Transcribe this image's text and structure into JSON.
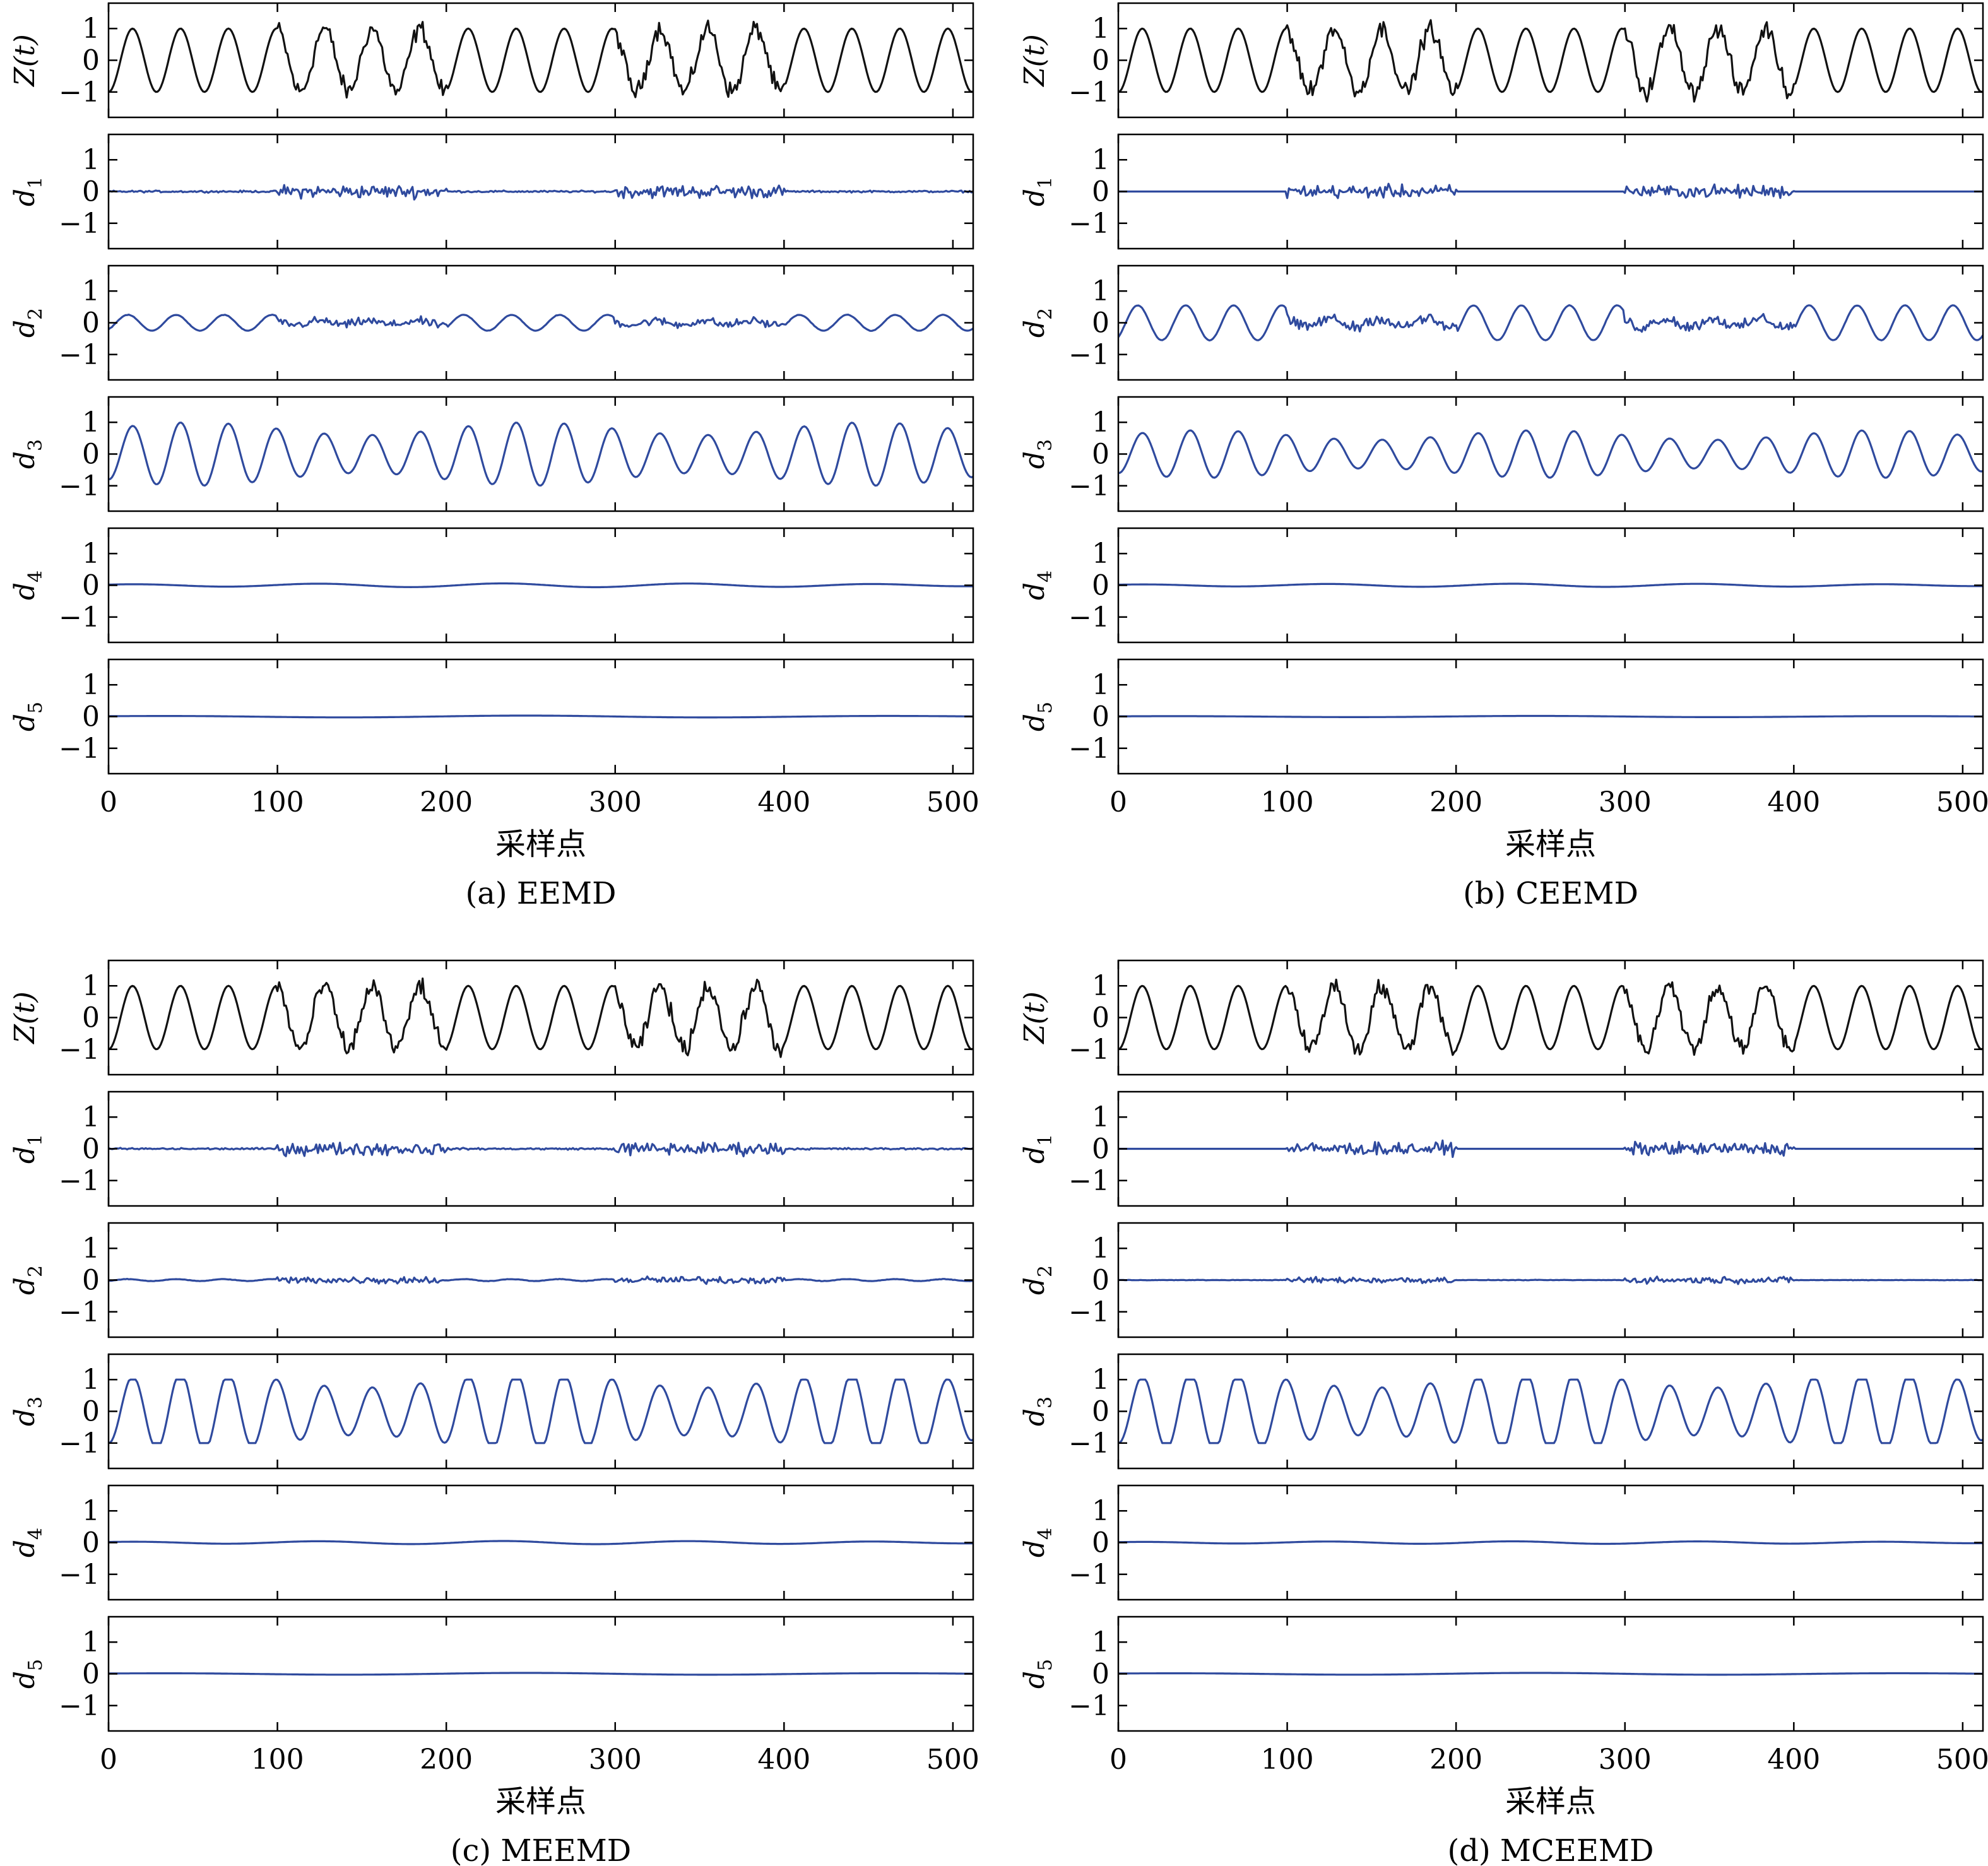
{
  "chart_data": [
    {
      "type": "line",
      "caption": "(a) EEMD",
      "xlabel": "采样点",
      "xlim": [
        0,
        512
      ],
      "xticks": [
        0,
        100,
        200,
        300,
        400,
        500
      ],
      "ylim": [
        -1.8,
        1.8
      ],
      "yticks": [
        -1,
        0,
        1
      ],
      "panels": [
        {
          "ylabel": "Z(t)",
          "color": "#111111",
          "component": "signal",
          "amp": 1.0,
          "noise": 0.2
        },
        {
          "ylabel": "d1",
          "color": "#2f4a9e",
          "component": "noise",
          "amp": 0.14,
          "base": 0.02
        },
        {
          "ylabel": "d2",
          "color": "#2f4a9e",
          "component": "mixed",
          "amp": 0.25,
          "noise": 0.09
        },
        {
          "ylabel": "d3",
          "color": "#2f4a9e",
          "component": "sine",
          "amp": 0.8
        },
        {
          "ylabel": "d4",
          "color": "#2f4a9e",
          "component": "slow",
          "amp": 0.06,
          "period": 110
        },
        {
          "ylabel": "d5",
          "color": "#2f4a9e",
          "component": "slow",
          "amp": 0.03,
          "period": 220
        }
      ]
    },
    {
      "type": "line",
      "caption": "(b) CEEMD",
      "xlabel": "采样点",
      "xlim": [
        0,
        512
      ],
      "xticks": [
        0,
        100,
        200,
        300,
        400,
        500
      ],
      "ylim": [
        -1.8,
        1.8
      ],
      "yticks": [
        -1,
        0,
        1
      ],
      "panels": [
        {
          "ylabel": "Z(t)",
          "color": "#111111",
          "component": "signal",
          "amp": 1.0,
          "noise": 0.2
        },
        {
          "ylabel": "d1",
          "color": "#2f4a9e",
          "component": "noise",
          "amp": 0.14,
          "base": 0.0
        },
        {
          "ylabel": "d2",
          "color": "#2f4a9e",
          "component": "mixed",
          "amp": 0.55,
          "noise": 0.12
        },
        {
          "ylabel": "d3",
          "color": "#2f4a9e",
          "component": "sine",
          "amp": 0.6
        },
        {
          "ylabel": "d4",
          "color": "#2f4a9e",
          "component": "slow",
          "amp": 0.05,
          "period": 110
        },
        {
          "ylabel": "d5",
          "color": "#2f4a9e",
          "component": "slow",
          "amp": 0.02,
          "period": 220
        }
      ]
    },
    {
      "type": "line",
      "caption": "(c) MEEMD",
      "xlabel": "采样点",
      "xlim": [
        0,
        512
      ],
      "xticks": [
        0,
        100,
        200,
        300,
        400,
        500
      ],
      "ylim": [
        -1.8,
        1.8
      ],
      "yticks": [
        -1,
        0,
        1
      ],
      "panels": [
        {
          "ylabel": "Z(t)",
          "color": "#111111",
          "component": "signal",
          "amp": 1.0,
          "noise": 0.2
        },
        {
          "ylabel": "d1",
          "color": "#2f4a9e",
          "component": "noise",
          "amp": 0.14,
          "base": 0.02
        },
        {
          "ylabel": "d2",
          "color": "#2f4a9e",
          "component": "mixed",
          "amp": 0.03,
          "noise": 0.08
        },
        {
          "ylabel": "d3",
          "color": "#2f4a9e",
          "component": "sine",
          "amp": 1.0
        },
        {
          "ylabel": "d4",
          "color": "#2f4a9e",
          "component": "slow",
          "amp": 0.05,
          "period": 110
        },
        {
          "ylabel": "d5",
          "color": "#2f4a9e",
          "component": "slow",
          "amp": 0.03,
          "period": 220
        }
      ]
    },
    {
      "type": "line",
      "caption": "(d) MCEEMD",
      "xlabel": "采样点",
      "xlim": [
        0,
        512
      ],
      "xticks": [
        0,
        100,
        200,
        300,
        400,
        500
      ],
      "ylim": [
        -1.8,
        1.8
      ],
      "yticks": [
        -1,
        0,
        1
      ],
      "panels": [
        {
          "ylabel": "Z(t)",
          "color": "#111111",
          "component": "signal",
          "amp": 1.0,
          "noise": 0.2
        },
        {
          "ylabel": "d1",
          "color": "#2f4a9e",
          "component": "noise",
          "amp": 0.14,
          "base": 0.0
        },
        {
          "ylabel": "d2",
          "color": "#2f4a9e",
          "component": "mixed",
          "amp": 0.0,
          "noise": 0.07
        },
        {
          "ylabel": "d3",
          "color": "#2f4a9e",
          "component": "sine",
          "amp": 1.0
        },
        {
          "ylabel": "d4",
          "color": "#2f4a9e",
          "component": "slow",
          "amp": 0.04,
          "period": 110
        },
        {
          "ylabel": "d5",
          "color": "#2f4a9e",
          "component": "slow",
          "amp": 0.03,
          "period": 220
        }
      ]
    }
  ]
}
